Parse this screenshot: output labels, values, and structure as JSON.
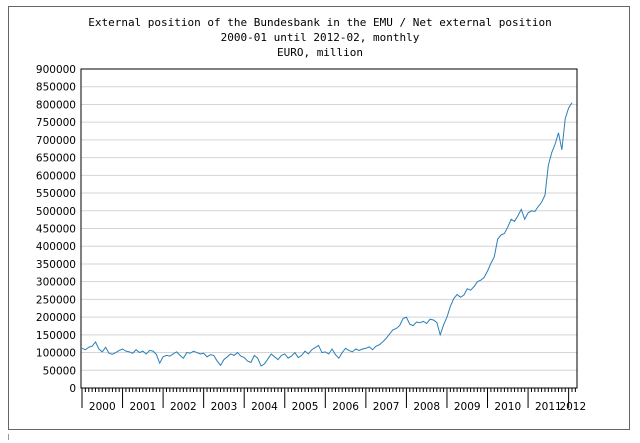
{
  "chart_data": {
    "type": "line",
    "title": "External position of the Bundesbank in the EMU / Net external position",
    "subtitle": "2000-01 until 2012-02, monthly",
    "unit": "EURO, million",
    "xlabel": "",
    "ylabel": "",
    "ylim": [
      0,
      900000
    ],
    "y_ticks": [
      "0",
      "50000",
      "100000",
      "150000",
      "200000",
      "250000",
      "300000",
      "350000",
      "400000",
      "450000",
      "500000",
      "550000",
      "600000",
      "650000",
      "700000",
      "750000",
      "800000",
      "850000",
      "900000"
    ],
    "x_tick_labels": [
      "2000",
      "2001",
      "2002",
      "2003",
      "2004",
      "2005",
      "2006",
      "2007",
      "2008",
      "2009",
      "2010",
      "2011",
      "2012"
    ],
    "x_start": "2000-01",
    "x_end": "2012-02",
    "grid": true,
    "line_color": "#2a7fb8",
    "series": [
      {
        "name": "",
        "values": [
          112000,
          108000,
          115000,
          118000,
          130000,
          110000,
          102000,
          115000,
          98000,
          95000,
          100000,
          106000,
          110000,
          104000,
          102000,
          98000,
          108000,
          100000,
          104000,
          96000,
          106000,
          104000,
          95000,
          70000,
          88000,
          92000,
          90000,
          96000,
          102000,
          92000,
          84000,
          100000,
          98000,
          104000,
          100000,
          96000,
          98000,
          88000,
          94000,
          92000,
          76000,
          64000,
          80000,
          88000,
          96000,
          92000,
          100000,
          90000,
          86000,
          76000,
          72000,
          92000,
          84000,
          62000,
          68000,
          82000,
          96000,
          88000,
          80000,
          92000,
          96000,
          84000,
          90000,
          100000,
          86000,
          92000,
          104000,
          96000,
          108000,
          114000,
          120000,
          100000,
          102000,
          96000,
          110000,
          94000,
          84000,
          100000,
          112000,
          106000,
          102000,
          110000,
          106000,
          110000,
          112000,
          116000,
          108000,
          118000,
          122000,
          130000,
          140000,
          152000,
          164000,
          168000,
          176000,
          196000,
          200000,
          180000,
          176000,
          186000,
          184000,
          188000,
          182000,
          194000,
          192000,
          185000,
          150000,
          178000,
          200000,
          230000,
          252000,
          264000,
          256000,
          262000,
          280000,
          276000,
          286000,
          300000,
          304000,
          312000,
          330000,
          352000,
          370000,
          420000,
          432000,
          436000,
          454000,
          476000,
          470000,
          486000,
          504000,
          476000,
          494000,
          500000,
          498000,
          512000,
          524000,
          544000,
          628000,
          664000,
          688000,
          720000,
          672000,
          760000,
          790000,
          805000
        ]
      }
    ]
  }
}
